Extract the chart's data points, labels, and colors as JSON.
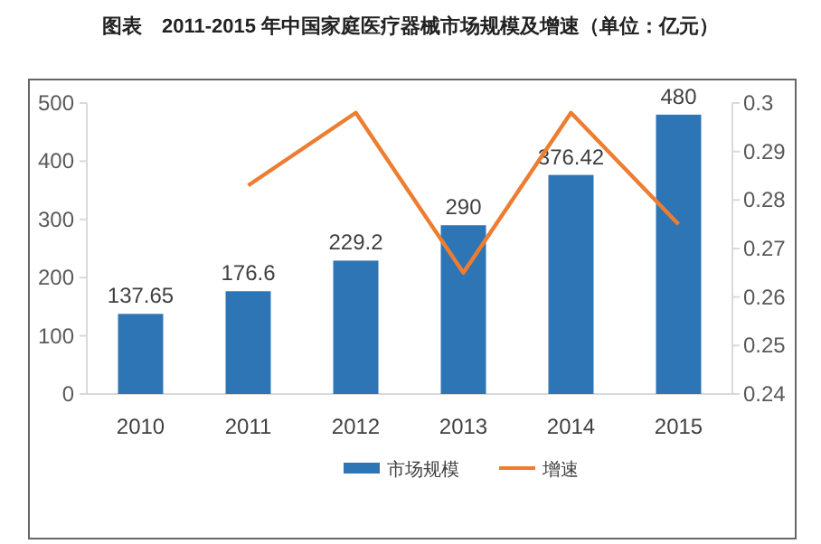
{
  "chart_data": {
    "type": "bar",
    "title": "图表　2011-2015 年中国家庭医疗器械市场规模及增速（单位：亿元）",
    "categories": [
      "2010",
      "2011",
      "2012",
      "2013",
      "2014",
      "2015"
    ],
    "series": [
      {
        "name": "市场规模",
        "color": "#2e75b6",
        "values": [
          137.65,
          176.6,
          229.2,
          290,
          376.42,
          480
        ],
        "value_labels": [
          "137.65",
          "176.6",
          "229.2",
          "290",
          "376.42",
          "480"
        ]
      },
      {
        "name": "增速",
        "type": "line",
        "axis": "y2",
        "color": "#ed7d31",
        "values": [
          null,
          0.283,
          0.298,
          0.265,
          0.298,
          0.275
        ],
        "marker": "none"
      }
    ],
    "ylim": [
      0,
      500
    ],
    "yticks": [
      0,
      100,
      200,
      300,
      400,
      500
    ],
    "y2lim": [
      0.24,
      0.3
    ],
    "y2ticks": [
      0.24,
      0.25,
      0.26,
      0.27,
      0.28,
      0.29,
      0.3
    ],
    "grid": false,
    "legend": "bottom"
  }
}
